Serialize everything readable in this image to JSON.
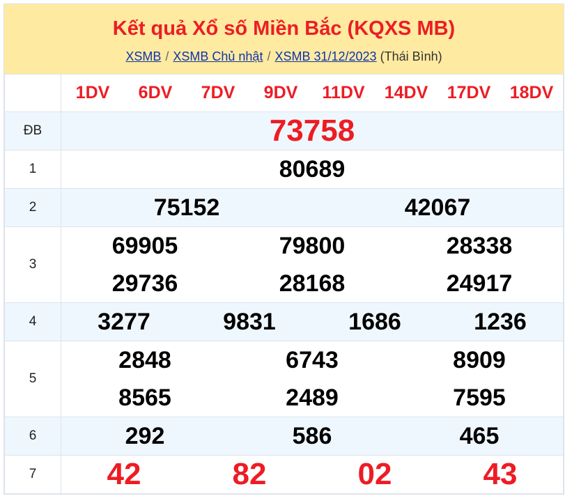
{
  "header": {
    "title": "Kết quả Xổ số Miền Bắc (KQXS MB)",
    "breadcrumb": [
      "XSMB",
      "XSMB Chủ nhật",
      "XSMB 31/12/2023"
    ],
    "province": "(Thái Bình)"
  },
  "codes": [
    "1DV",
    "6DV",
    "7DV",
    "9DV",
    "11DV",
    "14DV",
    "17DV",
    "18DV"
  ],
  "prizes": [
    {
      "label": "ĐB",
      "rows": [
        [
          "73758"
        ]
      ]
    },
    {
      "label": "1",
      "rows": [
        [
          "80689"
        ]
      ]
    },
    {
      "label": "2",
      "rows": [
        [
          "75152",
          "42067"
        ]
      ]
    },
    {
      "label": "3",
      "rows": [
        [
          "69905",
          "79800",
          "28338"
        ],
        [
          "29736",
          "28168",
          "24917"
        ]
      ]
    },
    {
      "label": "4",
      "rows": [
        [
          "3277",
          "9831",
          "1686",
          "1236"
        ]
      ]
    },
    {
      "label": "5",
      "rows": [
        [
          "2848",
          "6743",
          "8909"
        ],
        [
          "8565",
          "2489",
          "7595"
        ]
      ]
    },
    {
      "label": "6",
      "rows": [
        [
          "292",
          "586",
          "465"
        ]
      ]
    },
    {
      "label": "7",
      "rows": [
        [
          "42",
          "82",
          "02",
          "43"
        ]
      ]
    }
  ],
  "colors": {
    "accent": "#ed1c24",
    "header_bg": "#feeaa1",
    "alt_row": "#eff7fe",
    "link": "#1034a6"
  }
}
